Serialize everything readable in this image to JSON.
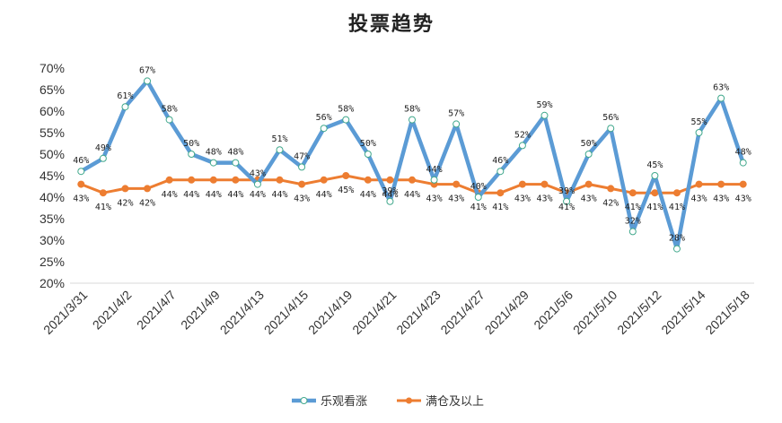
{
  "chart_data": {
    "type": "line",
    "title": "投票趋势",
    "categories": [
      "2021/3/31",
      "",
      "2021/4/2",
      "",
      "2021/4/7",
      "",
      "2021/4/9",
      "",
      "2021/4/13",
      "",
      "2021/4/15",
      "",
      "2021/4/19",
      "",
      "2021/4/21",
      "",
      "2021/4/23",
      "",
      "2021/4/27",
      "",
      "2021/4/29",
      "",
      "2021/5/6",
      "",
      "2021/5/10",
      "",
      "2021/5/12",
      "",
      "2021/5/14",
      "",
      "2021/5/18"
    ],
    "series": [
      {
        "name": "乐观看涨",
        "color": "#5B9BD5",
        "values": [
          46,
          49,
          61,
          67,
          58,
          50,
          48,
          48,
          43,
          51,
          47,
          56,
          58,
          50,
          39,
          58,
          44,
          57,
          40,
          46,
          52,
          59,
          39,
          50,
          56,
          32,
          45,
          28,
          55,
          63,
          48
        ],
        "labels": [
          "46%",
          "49%",
          "61%",
          "67%",
          "58%",
          "50%",
          "48%",
          "48%",
          "43%",
          "51%",
          "47%",
          "56%",
          "58%",
          "50%",
          "39%",
          "58%",
          "44%",
          "57%",
          "40%",
          "46%",
          "52%",
          "59%",
          "39%",
          "50%",
          "56%",
          "32%",
          "45%",
          "28%",
          "55%",
          "63%",
          "48%"
        ]
      },
      {
        "name": "满仓及以上",
        "color": "#ED7D31",
        "values": [
          43,
          41,
          42,
          42,
          44,
          44,
          44,
          44,
          44,
          44,
          43,
          44,
          45,
          44,
          44,
          44,
          43,
          43,
          41,
          41,
          43,
          43,
          41,
          43,
          42,
          41,
          41,
          41,
          43,
          43,
          43
        ],
        "labels": [
          "43%",
          "41%",
          "42%",
          "42%",
          "44%",
          "44%",
          "44%",
          "44%",
          "44%",
          "44%",
          "43%",
          "44%",
          "45%",
          "44%",
          "44%",
          "44%",
          "43%",
          "43%",
          "41%",
          "41%",
          "43%",
          "43%",
          "41%",
          "43%",
          "42%",
          "41%",
          "41%",
          "41%",
          "43%",
          "43%",
          "43%"
        ]
      }
    ],
    "ylim": [
      20,
      70
    ],
    "yticks": [
      "20%",
      "25%",
      "30%",
      "35%",
      "40%",
      "45%",
      "50%",
      "55%",
      "60%",
      "65%",
      "70%"
    ],
    "legend_position": "bottom",
    "grid": false
  }
}
